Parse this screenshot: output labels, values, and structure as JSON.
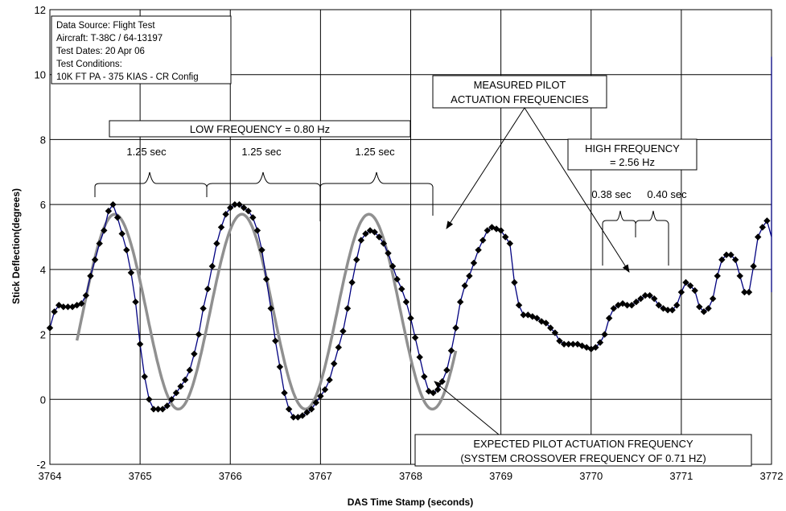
{
  "chart_data": {
    "type": "line",
    "xlabel": "DAS Time Stamp (seconds)",
    "ylabel": "Stick Deflection(degrees)",
    "xlim": [
      3764,
      3772
    ],
    "ylim": [
      -2,
      12
    ],
    "x_ticks": [
      3764,
      3765,
      3766,
      3767,
      3768,
      3769,
      3770,
      3771,
      3772
    ],
    "y_ticks": [
      -2,
      0,
      2,
      4,
      6,
      8,
      10,
      12
    ],
    "grid": true,
    "info_box": [
      "Data Source: Flight Test",
      "Aircraft: T-38C / 64-13197",
      "Test Dates: 20 Apr  06",
      "Test Conditions:",
      "10K FT PA - 375 KIAS - CR Config"
    ],
    "annotations": {
      "low_frequency": "LOW FREQUENCY = 0.80 Hz",
      "period_labels": [
        "1.25 sec",
        "1.25 sec",
        "1.25 sec"
      ],
      "measured_line1": "MEASURED PILOT",
      "measured_line2": "ACTUATION FREQUENCIES",
      "high_line1": "HIGH FREQUENCY",
      "high_line2": "= 2.56 Hz",
      "high_period_1": "0.38 sec",
      "high_period_2": "0.40 sec",
      "expected_line1": "EXPECTED PILOT ACTUATION FREQUENCY",
      "expected_line2": "(SYSTEM CROSSOVER FREQUENCY OF 0.71 HZ)"
    },
    "series": [
      {
        "style": "line-with-markers",
        "color": "#000080",
        "marker_color": "#000000",
        "points": [
          [
            3764.0,
            2.2
          ],
          [
            3764.05,
            2.7
          ],
          [
            3764.1,
            2.9
          ],
          [
            3764.15,
            2.85
          ],
          [
            3764.2,
            2.85
          ],
          [
            3764.25,
            2.85
          ],
          [
            3764.3,
            2.9
          ],
          [
            3764.35,
            2.95
          ],
          [
            3764.4,
            3.2
          ],
          [
            3764.45,
            3.8
          ],
          [
            3764.5,
            4.3
          ],
          [
            3764.55,
            4.8
          ],
          [
            3764.6,
            5.2
          ],
          [
            3764.65,
            5.8
          ],
          [
            3764.7,
            6.0
          ],
          [
            3764.75,
            5.6
          ],
          [
            3764.8,
            5.1
          ],
          [
            3764.85,
            4.6
          ],
          [
            3764.9,
            3.9
          ],
          [
            3764.95,
            3.0
          ],
          [
            3765.0,
            1.7
          ],
          [
            3765.05,
            0.7
          ],
          [
            3765.1,
            0.0
          ],
          [
            3765.15,
            -0.3
          ],
          [
            3765.2,
            -0.3
          ],
          [
            3765.25,
            -0.3
          ],
          [
            3765.3,
            -0.2
          ],
          [
            3765.35,
            0.0
          ],
          [
            3765.4,
            0.2
          ],
          [
            3765.45,
            0.4
          ],
          [
            3765.5,
            0.6
          ],
          [
            3765.55,
            0.9
          ],
          [
            3765.6,
            1.4
          ],
          [
            3765.65,
            2.0
          ],
          [
            3765.7,
            2.8
          ],
          [
            3765.75,
            3.4
          ],
          [
            3765.8,
            4.1
          ],
          [
            3765.85,
            4.8
          ],
          [
            3765.9,
            5.3
          ],
          [
            3765.95,
            5.7
          ],
          [
            3766.0,
            5.9
          ],
          [
            3766.05,
            6.0
          ],
          [
            3766.1,
            6.0
          ],
          [
            3766.15,
            5.9
          ],
          [
            3766.2,
            5.8
          ],
          [
            3766.25,
            5.6
          ],
          [
            3766.3,
            5.2
          ],
          [
            3766.35,
            4.6
          ],
          [
            3766.4,
            3.7
          ],
          [
            3766.45,
            2.8
          ],
          [
            3766.5,
            1.8
          ],
          [
            3766.55,
            1.0
          ],
          [
            3766.6,
            0.2
          ],
          [
            3766.65,
            -0.3
          ],
          [
            3766.7,
            -0.55
          ],
          [
            3766.75,
            -0.55
          ],
          [
            3766.8,
            -0.5
          ],
          [
            3766.85,
            -0.4
          ],
          [
            3766.9,
            -0.3
          ],
          [
            3766.95,
            -0.1
          ],
          [
            3767.0,
            0.1
          ],
          [
            3767.05,
            0.3
          ],
          [
            3767.1,
            0.6
          ],
          [
            3767.15,
            1.1
          ],
          [
            3767.2,
            1.6
          ],
          [
            3767.25,
            2.1
          ],
          [
            3767.3,
            2.8
          ],
          [
            3767.35,
            3.6
          ],
          [
            3767.4,
            4.3
          ],
          [
            3767.45,
            4.9
          ],
          [
            3767.5,
            5.1
          ],
          [
            3767.55,
            5.2
          ],
          [
            3767.6,
            5.15
          ],
          [
            3767.65,
            5.0
          ],
          [
            3767.7,
            4.8
          ],
          [
            3767.75,
            4.5
          ],
          [
            3767.8,
            4.1
          ],
          [
            3767.85,
            3.7
          ],
          [
            3767.9,
            3.4
          ],
          [
            3767.95,
            3.0
          ],
          [
            3768.0,
            2.5
          ],
          [
            3768.05,
            1.9
          ],
          [
            3768.1,
            1.3
          ],
          [
            3768.15,
            0.7
          ],
          [
            3768.2,
            0.25
          ],
          [
            3768.25,
            0.2
          ],
          [
            3768.3,
            0.3
          ],
          [
            3768.35,
            0.55
          ],
          [
            3768.4,
            0.9
          ],
          [
            3768.45,
            1.5
          ],
          [
            3768.5,
            2.2
          ],
          [
            3768.55,
            3.0
          ],
          [
            3768.6,
            3.5
          ],
          [
            3768.65,
            3.8
          ],
          [
            3768.7,
            4.2
          ],
          [
            3768.75,
            4.6
          ],
          [
            3768.8,
            4.9
          ],
          [
            3768.85,
            5.2
          ],
          [
            3768.9,
            5.3
          ],
          [
            3768.95,
            5.25
          ],
          [
            3769.0,
            5.2
          ],
          [
            3769.05,
            5.0
          ],
          [
            3769.1,
            4.8
          ],
          [
            3769.15,
            3.6
          ],
          [
            3769.2,
            2.9
          ],
          [
            3769.25,
            2.6
          ],
          [
            3769.3,
            2.6
          ],
          [
            3769.35,
            2.55
          ],
          [
            3769.4,
            2.5
          ],
          [
            3769.45,
            2.4
          ],
          [
            3769.5,
            2.35
          ],
          [
            3769.55,
            2.2
          ],
          [
            3769.6,
            2.05
          ],
          [
            3769.65,
            1.8
          ],
          [
            3769.7,
            1.7
          ],
          [
            3769.75,
            1.7
          ],
          [
            3769.8,
            1.7
          ],
          [
            3769.85,
            1.7
          ],
          [
            3769.9,
            1.65
          ],
          [
            3769.95,
            1.6
          ],
          [
            3770.0,
            1.55
          ],
          [
            3770.05,
            1.6
          ],
          [
            3770.1,
            1.75
          ],
          [
            3770.15,
            2.0
          ],
          [
            3770.2,
            2.5
          ],
          [
            3770.25,
            2.8
          ],
          [
            3770.3,
            2.9
          ],
          [
            3770.35,
            2.95
          ],
          [
            3770.4,
            2.9
          ],
          [
            3770.45,
            2.9
          ],
          [
            3770.5,
            3.0
          ],
          [
            3770.55,
            3.1
          ],
          [
            3770.6,
            3.2
          ],
          [
            3770.65,
            3.2
          ],
          [
            3770.7,
            3.1
          ],
          [
            3770.75,
            2.9
          ],
          [
            3770.8,
            2.8
          ],
          [
            3770.85,
            2.75
          ],
          [
            3770.9,
            2.75
          ],
          [
            3770.95,
            2.9
          ],
          [
            3771.0,
            3.3
          ],
          [
            3771.05,
            3.6
          ],
          [
            3771.1,
            3.5
          ],
          [
            3771.15,
            3.35
          ],
          [
            3771.2,
            2.85
          ],
          [
            3771.25,
            2.7
          ],
          [
            3771.3,
            2.8
          ],
          [
            3771.35,
            3.1
          ],
          [
            3771.4,
            3.8
          ],
          [
            3771.45,
            4.3
          ],
          [
            3771.5,
            4.45
          ],
          [
            3771.55,
            4.45
          ],
          [
            3771.6,
            4.3
          ],
          [
            3771.65,
            3.8
          ],
          [
            3771.7,
            3.3
          ],
          [
            3771.75,
            3.3
          ],
          [
            3771.8,
            4.1
          ],
          [
            3771.85,
            5.0
          ],
          [
            3771.9,
            5.3
          ],
          [
            3771.95,
            5.5
          ],
          [
            3772.0,
            5.0
          ],
          [
            3772.05,
            4.5
          ],
          [
            3772.1,
            3.6
          ],
          [
            3772.15,
            3.3
          ],
          [
            3772.2,
            4.1
          ],
          [
            3772.25,
            6.3
          ],
          [
            3772.3,
            8.0
          ],
          [
            3772.35,
            9.3
          ],
          [
            3772.4,
            10.3
          ],
          [
            3772.45,
            10.55
          ],
          [
            3772.5,
            10.5
          ]
        ]
      },
      {
        "style": "line",
        "color": "#909090",
        "function": "sine",
        "center": 2.7,
        "amplitude": 3.0,
        "frequency_hz": 0.71,
        "x_start": 3764.3,
        "x_end": 3768.5
      }
    ]
  }
}
